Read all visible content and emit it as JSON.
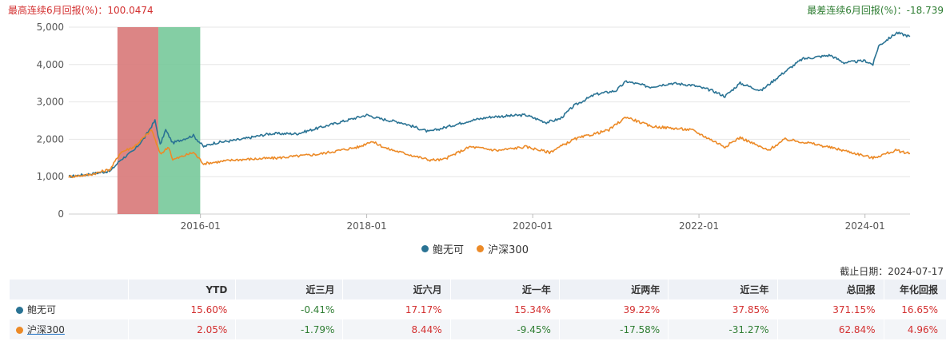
{
  "notes": {
    "best": "最高连续6月回报(%)：100.0474",
    "worst": "最差连续6月回报(%)：-18.739"
  },
  "as_of": "截止日期：2024-07-17",
  "colors": {
    "fund": "#2a7394",
    "index": "#ec8a27",
    "best_band": "#d87878",
    "worst_band": "#77c99a",
    "grid": "#e6e6e6"
  },
  "chart_data": {
    "type": "line",
    "x_start": "2014-06-01",
    "x_end": "2024-07-17",
    "ylim": [
      0,
      5000
    ],
    "yticks": [
      "0",
      "1,000",
      "2,000",
      "3,000",
      "4,000",
      "5,000"
    ],
    "xticks": [
      "2016-01",
      "2018-01",
      "2020-01",
      "2022-01",
      "2024-01"
    ],
    "bands": [
      {
        "name": "最高连续6月回报",
        "from": "2015-01-01",
        "to": "2015-06-30"
      },
      {
        "name": "最差连续6月回报",
        "from": "2015-06-30",
        "to": "2015-12-31"
      }
    ],
    "series": [
      {
        "name": "鲍无可",
        "color": "#2a7394",
        "points": [
          [
            "2014-06-01",
            1000
          ],
          [
            "2014-09-01",
            1070
          ],
          [
            "2014-12-01",
            1150
          ],
          [
            "2015-01-15",
            1450
          ],
          [
            "2015-03-15",
            1700
          ],
          [
            "2015-05-01",
            2050
          ],
          [
            "2015-06-15",
            2500
          ],
          [
            "2015-07-08",
            1850
          ],
          [
            "2015-08-01",
            2250
          ],
          [
            "2015-09-01",
            1900
          ],
          [
            "2015-10-15",
            2000
          ],
          [
            "2015-12-01",
            2100
          ],
          [
            "2016-01-15",
            1800
          ],
          [
            "2016-03-01",
            1900
          ],
          [
            "2016-07-01",
            2000
          ],
          [
            "2016-11-01",
            2150
          ],
          [
            "2017-03-01",
            2150
          ],
          [
            "2017-08-01",
            2400
          ],
          [
            "2018-01-01",
            2650
          ],
          [
            "2018-03-01",
            2550
          ],
          [
            "2018-06-01",
            2450
          ],
          [
            "2018-10-01",
            2200
          ],
          [
            "2018-12-01",
            2300
          ],
          [
            "2019-04-01",
            2500
          ],
          [
            "2019-07-01",
            2600
          ],
          [
            "2019-12-01",
            2650
          ],
          [
            "2020-03-01",
            2450
          ],
          [
            "2020-05-01",
            2550
          ],
          [
            "2020-07-01",
            2900
          ],
          [
            "2020-10-01",
            3200
          ],
          [
            "2021-01-01",
            3300
          ],
          [
            "2021-02-15",
            3550
          ],
          [
            "2021-06-01",
            3400
          ],
          [
            "2021-09-01",
            3500
          ],
          [
            "2021-12-01",
            3450
          ],
          [
            "2022-03-01",
            3300
          ],
          [
            "2022-04-25",
            3150
          ],
          [
            "2022-07-01",
            3500
          ],
          [
            "2022-10-01",
            3300
          ],
          [
            "2023-01-01",
            3750
          ],
          [
            "2023-04-01",
            4150
          ],
          [
            "2023-08-01",
            4250
          ],
          [
            "2023-10-01",
            4050
          ],
          [
            "2024-01-01",
            4100
          ],
          [
            "2024-02-05",
            4000
          ],
          [
            "2024-03-01",
            4500
          ],
          [
            "2024-05-20",
            4850
          ],
          [
            "2024-07-17",
            4750
          ]
        ]
      },
      {
        "name": "沪深300",
        "color": "#ec8a27",
        "points": [
          [
            "2014-06-01",
            1000
          ],
          [
            "2014-09-01",
            1050
          ],
          [
            "2014-12-01",
            1200
          ],
          [
            "2015-01-15",
            1650
          ],
          [
            "2015-03-15",
            1800
          ],
          [
            "2015-06-01",
            2250
          ],
          [
            "2015-07-08",
            1600
          ],
          [
            "2015-08-15",
            1800
          ],
          [
            "2015-09-01",
            1450
          ],
          [
            "2015-12-01",
            1650
          ],
          [
            "2016-01-15",
            1350
          ],
          [
            "2016-06-01",
            1450
          ],
          [
            "2016-12-01",
            1500
          ],
          [
            "2017-06-01",
            1600
          ],
          [
            "2017-12-01",
            1800
          ],
          [
            "2018-01-20",
            1950
          ],
          [
            "2018-04-01",
            1750
          ],
          [
            "2018-10-01",
            1450
          ],
          [
            "2018-12-01",
            1450
          ],
          [
            "2019-04-01",
            1800
          ],
          [
            "2019-08-01",
            1700
          ],
          [
            "2019-12-01",
            1800
          ],
          [
            "2020-03-15",
            1650
          ],
          [
            "2020-07-01",
            2000
          ],
          [
            "2020-12-01",
            2250
          ],
          [
            "2021-02-15",
            2600
          ],
          [
            "2021-06-01",
            2350
          ],
          [
            "2021-12-01",
            2250
          ],
          [
            "2022-04-25",
            1800
          ],
          [
            "2022-07-01",
            2050
          ],
          [
            "2022-10-31",
            1700
          ],
          [
            "2023-01-15",
            2000
          ],
          [
            "2023-05-01",
            1900
          ],
          [
            "2023-10-01",
            1700
          ],
          [
            "2024-02-05",
            1500
          ],
          [
            "2024-05-15",
            1700
          ],
          [
            "2024-07-17",
            1620
          ]
        ]
      }
    ]
  },
  "legend": [
    {
      "label": "鲍无可",
      "color": "#2a7394"
    },
    {
      "label": "沪深300",
      "color": "#ec8a27"
    }
  ],
  "table": {
    "headers": [
      "",
      "YTD",
      "近三月",
      "近六月",
      "近一年",
      "近两年",
      "近三年",
      "总回报",
      "年化回报"
    ],
    "rows": [
      {
        "name": "鲍无可",
        "color": "#2a7394",
        "values": [
          "15.60%",
          "-0.41%",
          "17.17%",
          "15.34%",
          "39.22%",
          "37.85%",
          "371.15%",
          "16.65%"
        ]
      },
      {
        "name": "沪深300",
        "color": "#ec8a27",
        "values": [
          "2.05%",
          "-1.79%",
          "8.44%",
          "-9.45%",
          "-17.58%",
          "-31.27%",
          "62.84%",
          "4.96%"
        ]
      }
    ]
  }
}
